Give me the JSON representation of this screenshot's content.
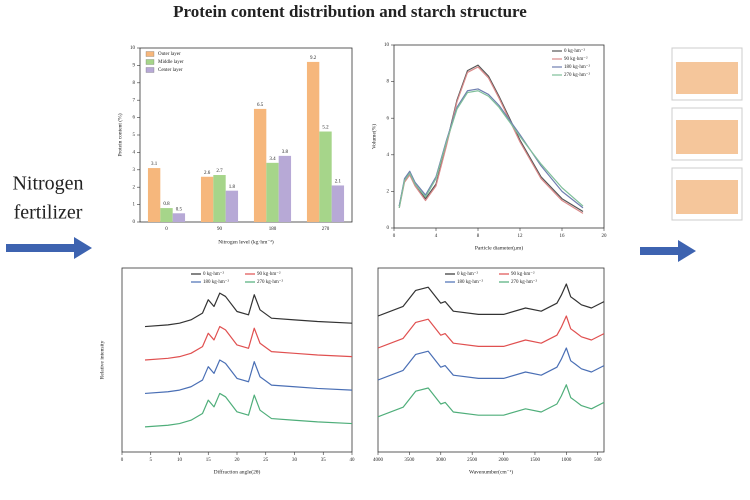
{
  "header": {
    "title": "Protein content distribution and starch structure",
    "side_label": [
      "Nitrogen",
      "fertilizer"
    ]
  },
  "chart_data": [
    {
      "type": "bar",
      "x_label": "Nitrogen level (kg·hm⁻²)",
      "y_label": "Protein content (%)",
      "categories": [
        "0",
        "90",
        "180",
        "270"
      ],
      "series": [
        {
          "name": "Outer layer",
          "color": "#f6b77c",
          "values": [
            3.1,
            2.6,
            6.5,
            9.2
          ]
        },
        {
          "name": "Middle layer",
          "color": "#a6d58a",
          "values": [
            0.8,
            2.7,
            3.4,
            5.2
          ]
        },
        {
          "name": "Center layer",
          "color": "#b7a9d6",
          "values": [
            0.5,
            1.8,
            3.8,
            2.1
          ]
        }
      ],
      "ylim": [
        0,
        10
      ],
      "yticks": [
        0,
        1,
        2,
        3,
        4,
        5,
        6,
        7,
        8,
        9,
        10
      ],
      "legend": "upper left"
    },
    {
      "type": "line",
      "x_label": "Particle diameter(μm)",
      "y_label": "Volume(%)",
      "x": [
        0.5,
        1,
        1.5,
        2,
        3,
        4,
        5,
        6,
        7,
        8,
        9,
        10,
        12,
        14,
        16,
        18
      ],
      "series": [
        {
          "name": "0 kg·hm⁻²",
          "color": "#555555",
          "values": [
            1.2,
            2.6,
            3.0,
            2.4,
            1.6,
            2.4,
            4.6,
            7.0,
            8.6,
            8.9,
            8.3,
            7.2,
            4.8,
            2.8,
            1.6,
            0.9
          ]
        },
        {
          "name": "90 kg·hm⁻²",
          "color": "#d98a8a",
          "values": [
            1.1,
            2.5,
            2.9,
            2.3,
            1.5,
            2.3,
            4.5,
            6.9,
            8.5,
            8.8,
            8.2,
            7.1,
            4.7,
            2.7,
            1.5,
            0.8
          ]
        },
        {
          "name": "180 kg·hm⁻²",
          "color": "#6f7fb0",
          "values": [
            1.2,
            2.7,
            3.1,
            2.5,
            1.8,
            2.8,
            4.8,
            6.6,
            7.5,
            7.6,
            7.3,
            6.7,
            5.1,
            3.4,
            2.0,
            1.1
          ]
        },
        {
          "name": "270 kg·hm⁻²",
          "color": "#7fbf9a",
          "values": [
            1.1,
            2.6,
            3.0,
            2.4,
            1.7,
            2.7,
            4.7,
            6.5,
            7.4,
            7.5,
            7.2,
            6.6,
            5.0,
            3.5,
            2.2,
            1.2
          ]
        }
      ],
      "xlim": [
        0,
        20
      ],
      "xticks": [
        0,
        4,
        8,
        12,
        16,
        20
      ],
      "ylim": [
        0,
        10
      ],
      "yticks": [
        0,
        2,
        4,
        6,
        8,
        10
      ],
      "legend": "upper right"
    },
    {
      "type": "line",
      "x_label": "Diffraction angle(2θ)",
      "y_label": "Relative intensity",
      "x": [
        4,
        8,
        10,
        12,
        14,
        15,
        16,
        17,
        18,
        20,
        22,
        23,
        24,
        26,
        30,
        34,
        40
      ],
      "series": [
        {
          "name": "0 kg·hm⁻²",
          "color": "#333333",
          "values": [
            7.5,
            7.6,
            7.7,
            7.9,
            8.3,
            9.1,
            8.7,
            9.5,
            9.3,
            8.4,
            8.2,
            9.4,
            8.5,
            8.0,
            7.9,
            7.8,
            7.7
          ]
        },
        {
          "name": "90 kg·hm⁻²",
          "color": "#e05050",
          "values": [
            5.5,
            5.6,
            5.7,
            5.9,
            6.3,
            7.1,
            6.7,
            7.5,
            7.3,
            6.4,
            6.2,
            7.4,
            6.5,
            6.0,
            5.9,
            5.8,
            5.7
          ]
        },
        {
          "name": "180 kg·hm⁻²",
          "color": "#4a6fb5",
          "values": [
            3.5,
            3.6,
            3.7,
            3.9,
            4.3,
            5.1,
            4.7,
            5.5,
            5.3,
            4.4,
            4.2,
            5.4,
            4.5,
            4.0,
            3.9,
            3.8,
            3.7
          ]
        },
        {
          "name": "270 kg·hm⁻²",
          "color": "#4fae7a",
          "values": [
            1.5,
            1.6,
            1.7,
            1.9,
            2.3,
            3.1,
            2.7,
            3.5,
            3.3,
            2.4,
            2.2,
            3.4,
            2.5,
            2.0,
            1.9,
            1.8,
            1.7
          ]
        }
      ],
      "xlim": [
        0,
        40
      ],
      "xticks": [
        0,
        5,
        10,
        15,
        20,
        25,
        30,
        35,
        40
      ],
      "ylim": [
        0,
        11
      ],
      "legend": "upper center"
    },
    {
      "type": "line",
      "x_label": "Wavenumber(cm⁻¹)",
      "x": [
        4000,
        3600,
        3400,
        3200,
        3000,
        2930,
        2800,
        2400,
        2000,
        1650,
        1400,
        1150,
        1080,
        1000,
        930,
        860,
        760,
        600,
        400
      ],
      "series": [
        {
          "name": "0 kg·hm⁻²",
          "color": "#333333",
          "values": [
            8.5,
            9.1,
            10.1,
            10.3,
            9.3,
            9.4,
            8.8,
            8.6,
            8.6,
            9.0,
            8.8,
            9.3,
            9.8,
            10.5,
            9.7,
            9.5,
            9.2,
            9.0,
            9.4
          ]
        },
        {
          "name": "90 kg·hm⁻²",
          "color": "#e05050",
          "values": [
            6.5,
            7.1,
            8.1,
            8.3,
            7.3,
            7.4,
            6.8,
            6.6,
            6.6,
            7.0,
            6.8,
            7.3,
            7.8,
            8.5,
            7.7,
            7.5,
            7.2,
            7.0,
            7.4
          ]
        },
        {
          "name": "180 kg·hm⁻²",
          "color": "#4a6fb5",
          "values": [
            4.5,
            5.1,
            6.1,
            6.3,
            5.3,
            5.4,
            4.8,
            4.6,
            4.6,
            5.0,
            4.8,
            5.3,
            5.8,
            6.5,
            5.7,
            5.5,
            5.2,
            5.0,
            5.4
          ]
        },
        {
          "name": "270 kg·hm⁻²",
          "color": "#4fae7a",
          "values": [
            2.2,
            2.8,
            3.8,
            4.0,
            3.0,
            3.1,
            2.5,
            2.3,
            2.3,
            2.7,
            2.5,
            3.0,
            3.5,
            4.2,
            3.4,
            3.2,
            2.9,
            2.7,
            3.1
          ]
        }
      ],
      "xlim": [
        4000,
        400
      ],
      "xticks": [
        4000,
        3500,
        3000,
        2500,
        2000,
        1500,
        1000,
        500
      ],
      "ylim": [
        0,
        11.5
      ],
      "legend": "upper center"
    }
  ]
}
